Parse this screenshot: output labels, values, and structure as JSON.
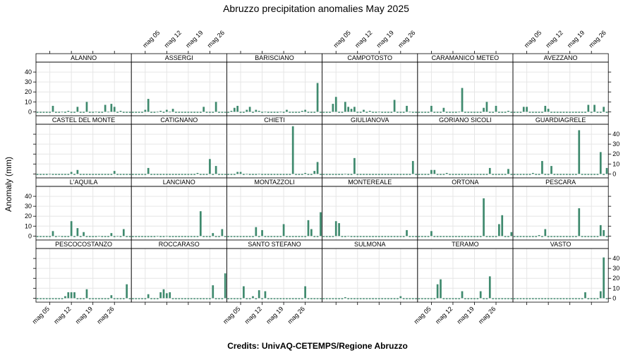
{
  "title": "Abruzzo precipitation anomalies May 2025",
  "ylabel": "Anomaly (mm)",
  "credits": "Credits: UnivAQ-CETEMPS/Regione Abruzzo",
  "colors": {
    "bar": "#3f8a6e",
    "grid": "#e6e6e6",
    "strip": "#ffffff",
    "frame": "#000000"
  },
  "chart_data": {
    "type": "bar",
    "layout": {
      "columns": 6,
      "rows": 4
    },
    "days": 31,
    "xticks": [
      {
        "day": 5,
        "label": "mag 05"
      },
      {
        "day": 12,
        "label": "mag 12"
      },
      {
        "day": 19,
        "label": "mag 19"
      },
      {
        "day": 26,
        "label": "mag 26"
      }
    ],
    "yticks": [
      0,
      10,
      20,
      30,
      40
    ],
    "ylim": [
      -4,
      50
    ],
    "panels": [
      {
        "name": "ALANNO",
        "values": [
          -1,
          -1,
          -1,
          -1,
          -1,
          6,
          -1,
          -1,
          0,
          -1,
          1,
          -1,
          -1,
          5,
          -1,
          -1,
          10,
          -1,
          -1,
          0,
          -1,
          -1,
          7,
          0,
          8,
          5,
          -1,
          1,
          -1,
          -1,
          -1
        ]
      },
      {
        "name": "ASSERGI",
        "values": [
          -1,
          -1,
          -1,
          -1,
          2,
          13,
          -1,
          -1,
          0,
          1,
          -1,
          2,
          0,
          3,
          -1,
          -1,
          -1,
          -1,
          -1,
          -1,
          -1,
          -1,
          -1,
          5,
          -1,
          -1,
          -1,
          10,
          -1,
          -1,
          -1
        ]
      },
      {
        "name": "BARISCIANO",
        "values": [
          -1,
          1,
          4,
          6,
          -1,
          -1,
          2,
          5,
          -1,
          2,
          1,
          -1,
          0,
          -1,
          -1,
          -1,
          -1,
          0,
          -1,
          2,
          -1,
          -1,
          -1,
          -1,
          1,
          2,
          -1,
          -1,
          -1,
          29,
          -1
        ]
      },
      {
        "name": "CAMPOTOSTO",
        "values": [
          -1,
          -1,
          -1,
          8,
          15,
          -1,
          -1,
          10,
          5,
          3,
          5,
          -1,
          -1,
          2,
          -1,
          1,
          -1,
          -1,
          0,
          -1,
          -1,
          -1,
          -1,
          12,
          -1,
          -1,
          -1,
          6,
          0,
          -1,
          -1
        ]
      },
      {
        "name": "CARAMANICO METEO",
        "values": [
          -1,
          -1,
          -1,
          -1,
          6,
          -1,
          -1,
          -1,
          4,
          -1,
          -1,
          -1,
          -1,
          0,
          24,
          -1,
          -1,
          -1,
          -1,
          -1,
          -1,
          4,
          10,
          -1,
          -1,
          6,
          -1,
          -1,
          -1,
          1,
          -1
        ]
      },
      {
        "name": "AVEZZANO",
        "values": [
          -1,
          -1,
          -1,
          5,
          5,
          -1,
          -1,
          -1,
          -1,
          -1,
          6,
          3,
          -1,
          -1,
          -1,
          -1,
          -1,
          -1,
          -1,
          -1,
          -1,
          -1,
          -1,
          -1,
          7,
          -1,
          7,
          -1,
          -1,
          5,
          -1
        ]
      },
      {
        "name": "CASTEL DEL MONTE",
        "values": [
          -1,
          -1,
          -1,
          -1,
          0,
          -1,
          -1,
          -1,
          -1,
          -1,
          -1,
          2,
          -1,
          4,
          -1,
          -1,
          -1,
          -1,
          -1,
          -1,
          -1,
          -1,
          -1,
          -1,
          -1,
          3,
          -1,
          -1,
          -1,
          -1,
          -1
        ]
      },
      {
        "name": "CATIGNANO",
        "values": [
          -1,
          -1,
          -1,
          -1,
          -1,
          6,
          -1,
          -1,
          -1,
          -1,
          -1,
          -1,
          -1,
          -1,
          -1,
          -1,
          -1,
          -1,
          -1,
          -1,
          -1,
          1,
          -1,
          -1,
          -1,
          15,
          -1,
          8,
          -1,
          -1,
          -1
        ]
      },
      {
        "name": "CHIETI",
        "values": [
          -1,
          -1,
          -1,
          2,
          2,
          -1,
          0,
          -1,
          -1,
          -1,
          0,
          -1,
          -1,
          -1,
          -1,
          -1,
          -1,
          -1,
          -1,
          -1,
          -1,
          48,
          -1,
          -1,
          -1,
          1,
          -1,
          -1,
          3,
          12,
          -1
        ]
      },
      {
        "name": "GIULIANOVA",
        "values": [
          -1,
          -1,
          -1,
          -1,
          -1,
          -1,
          -1,
          0,
          -1,
          -1,
          16,
          -1,
          -1,
          -1,
          -1,
          -1,
          -1,
          -1,
          -1,
          -1,
          -1,
          -1,
          -1,
          -1,
          -1,
          -1,
          -1,
          -1,
          -1,
          13,
          -1
        ]
      },
      {
        "name": "GORIANO SICOLI",
        "values": [
          -1,
          -1,
          -1,
          -1,
          4,
          4,
          -1,
          -1,
          -1,
          1,
          -1,
          -1,
          -1,
          -1,
          -1,
          -1,
          -1,
          -1,
          -1,
          -1,
          -1,
          -1,
          -1,
          6,
          -1,
          -1,
          -1,
          -1,
          -1,
          5,
          -1
        ]
      },
      {
        "name": "GUARDIAGRELE",
        "values": [
          -1,
          -1,
          -1,
          -1,
          -1,
          -1,
          1,
          -1,
          -1,
          13,
          -1,
          -1,
          8,
          -1,
          -1,
          -1,
          -1,
          -1,
          -1,
          -1,
          -1,
          44,
          -1,
          -1,
          -1,
          -1,
          -1,
          -1,
          22,
          -1,
          6
        ]
      },
      {
        "name": "L'AQUILA",
        "values": [
          -1,
          -1,
          -1,
          -1,
          -1,
          5,
          -1,
          0,
          -1,
          -1,
          -1,
          15,
          -1,
          8,
          -1,
          4,
          -1,
          -1,
          -1,
          -1,
          0,
          -1,
          -1,
          -1,
          3,
          -1,
          0,
          -1,
          7,
          -1,
          -1
        ]
      },
      {
        "name": "LANCIANO",
        "values": [
          -1,
          -1,
          -1,
          -1,
          -1,
          -1,
          -1,
          -1,
          0,
          -1,
          -1,
          0,
          -1,
          -1,
          -1,
          -1,
          -1,
          -1,
          -1,
          -1,
          -1,
          -1,
          25,
          -1,
          -1,
          -1,
          3,
          -1,
          -1,
          7,
          -1
        ]
      },
      {
        "name": "MONTAZZOLI",
        "values": [
          -1,
          -1,
          -1,
          -1,
          -1,
          -1,
          -1,
          -1,
          -1,
          9,
          -1,
          6,
          -1,
          -1,
          -1,
          -1,
          -1,
          -1,
          12,
          -1,
          -1,
          -1,
          -1,
          -1,
          -1,
          -1,
          16,
          7,
          -1,
          -1,
          24
        ]
      },
      {
        "name": "MONTEREALE",
        "values": [
          -1,
          -1,
          -1,
          -1,
          15,
          13,
          -1,
          -1,
          0,
          -1,
          -1,
          -1,
          -1,
          -1,
          -1,
          -1,
          -1,
          -1,
          -1,
          -1,
          -1,
          -1,
          -1,
          -1,
          -1,
          -1,
          -1,
          6,
          -1,
          -1,
          -1
        ]
      },
      {
        "name": "ORTONA",
        "values": [
          -1,
          -1,
          -1,
          -1,
          5,
          -1,
          -1,
          -1,
          -1,
          -1,
          -1,
          -1,
          -1,
          -1,
          -1,
          -1,
          -1,
          -1,
          -1,
          -1,
          -1,
          38,
          -1,
          -1,
          -1,
          -1,
          12,
          21,
          -1,
          -1,
          4
        ]
      },
      {
        "name": "PESCARA",
        "values": [
          -1,
          -1,
          -1,
          -1,
          -1,
          -1,
          -1,
          -1,
          1,
          -1,
          7,
          -1,
          -1,
          -1,
          -1,
          -1,
          -1,
          -1,
          -1,
          -1,
          -1,
          28,
          -1,
          -1,
          -1,
          -1,
          -1,
          -1,
          11,
          6,
          -1
        ]
      },
      {
        "name": "PESCOCOSTANZO",
        "values": [
          -1,
          -1,
          -1,
          -1,
          -1,
          -1,
          -1,
          -1,
          -1,
          2,
          6,
          6,
          6,
          -1,
          -1,
          -1,
          9,
          -1,
          -1,
          -1,
          -1,
          -1,
          -1,
          -1,
          3,
          -1,
          -1,
          -1,
          -1,
          14,
          -1
        ]
      },
      {
        "name": "ROCCARASO",
        "values": [
          -1,
          -1,
          -1,
          -1,
          -1,
          4,
          -1,
          -1,
          -1,
          6,
          9,
          5,
          6,
          -1,
          -1,
          -1,
          -1,
          -1,
          -1,
          -1,
          -1,
          -1,
          -1,
          -1,
          -1,
          -1,
          13,
          -1,
          -1,
          -1,
          25
        ]
      },
      {
        "name": "SANTO STEFANO",
        "values": [
          -1,
          -1,
          -1,
          -1,
          -1,
          12,
          -1,
          -1,
          2,
          -1,
          8,
          -1,
          7,
          -1,
          -1,
          -1,
          -1,
          -1,
          -1,
          -1,
          -1,
          -1,
          -1,
          -1,
          -1,
          12,
          -1,
          -1,
          -1,
          -1,
          -1
        ]
      },
      {
        "name": "SULMONA",
        "values": [
          -1,
          -1,
          -1,
          -1,
          -1,
          -1,
          -1,
          1,
          -1,
          -1,
          -1,
          -1,
          -1,
          -1,
          -1,
          -1,
          -1,
          -1,
          -1,
          -1,
          -1,
          -1,
          -1,
          -1,
          -1,
          2,
          -1,
          -1,
          -1,
          -1,
          -1
        ]
      },
      {
        "name": "TERAMO",
        "values": [
          -1,
          -1,
          -1,
          -1,
          -1,
          -1,
          14,
          19,
          -1,
          -1,
          -1,
          -1,
          -1,
          -1,
          7,
          -1,
          -1,
          -1,
          -1,
          -1,
          7,
          -1,
          -1,
          22,
          -1,
          -1,
          -1,
          -1,
          -1,
          -1,
          -1
        ]
      },
      {
        "name": "VASTO",
        "values": [
          -1,
          -1,
          -1,
          -1,
          -1,
          -1,
          -1,
          -1,
          -1,
          -1,
          -1,
          -1,
          -1,
          -1,
          -1,
          -1,
          -1,
          -1,
          -1,
          -1,
          -1,
          -1,
          -1,
          6,
          -1,
          -1,
          -1,
          -1,
          7,
          41,
          -1
        ]
      }
    ]
  }
}
